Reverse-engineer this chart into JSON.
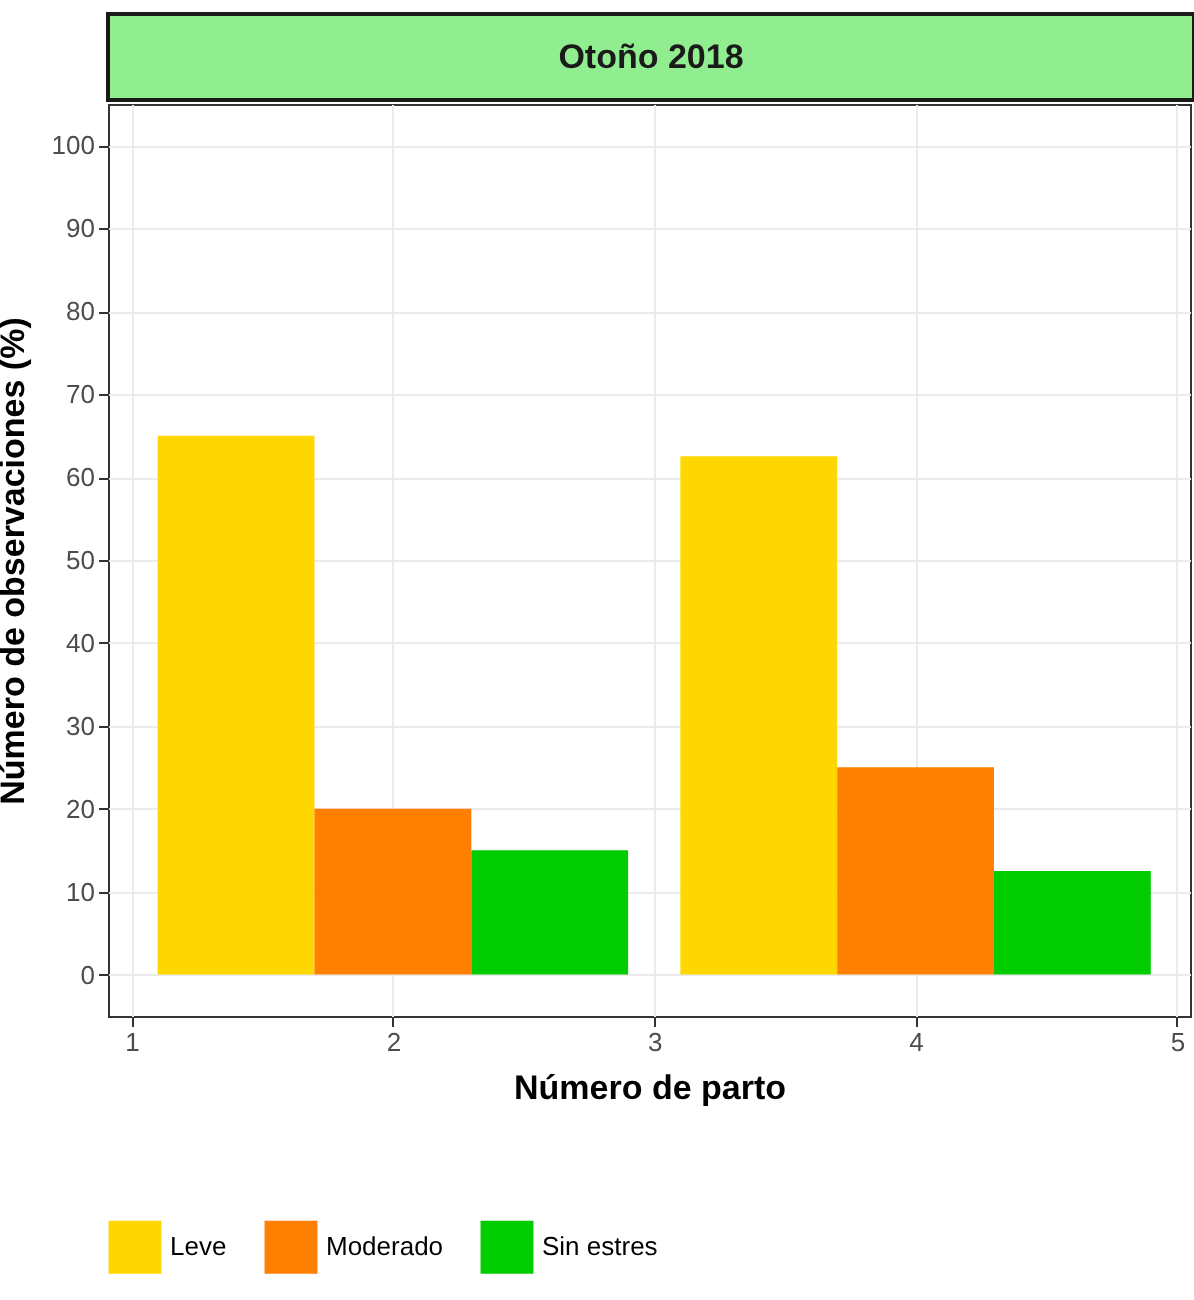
{
  "chart_data": {
    "type": "bar",
    "title": "Otoño 2018",
    "xlabel": "Número de parto",
    "ylabel": "Número de observaciones (%)",
    "x": [
      2,
      4
    ],
    "series": [
      {
        "name": "Leve",
        "color": "#ffd700",
        "values": [
          65,
          62.5
        ]
      },
      {
        "name": "Moderado",
        "color": "#ff8000",
        "values": [
          20,
          25
        ]
      },
      {
        "name": "Sin estres",
        "color": "#00cc00",
        "values": [
          15,
          12.5
        ]
      }
    ],
    "xlim": [
      0.91,
      5.05
    ],
    "xticks": [
      1,
      2,
      3,
      4,
      5
    ],
    "ylim": [
      -5,
      105
    ],
    "yticks": [
      0,
      10,
      20,
      30,
      40,
      50,
      60,
      70,
      80,
      90,
      100
    ],
    "grid": true,
    "legend": "bottom"
  }
}
